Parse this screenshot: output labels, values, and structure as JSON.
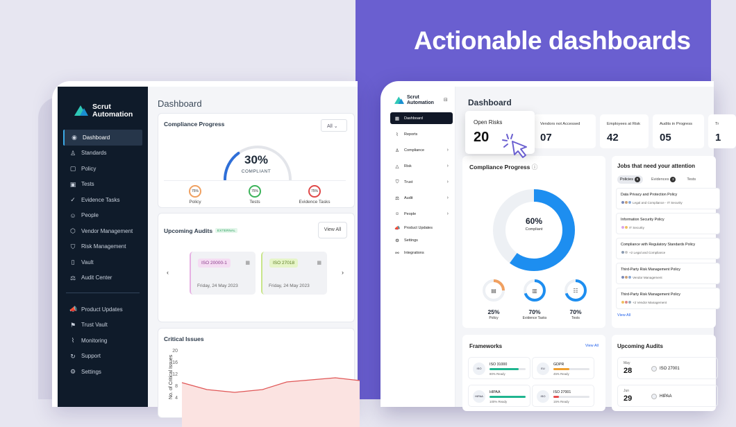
{
  "headline": "Actionable dashboards",
  "left": {
    "brand": {
      "line1": "Scrut",
      "line2": "Automation"
    },
    "nav": [
      {
        "label": "Dashboard",
        "icon": "◉",
        "active": true
      },
      {
        "label": "Standards",
        "icon": "♙"
      },
      {
        "label": "Policy",
        "icon": "▢"
      },
      {
        "label": "Tests",
        "icon": "▣"
      },
      {
        "label": "Evidence Tasks",
        "icon": "✓"
      },
      {
        "label": "People",
        "icon": "☺"
      },
      {
        "label": "Vendor Management",
        "icon": "⬡"
      },
      {
        "label": "Risk Management",
        "icon": "⛉"
      },
      {
        "label": "Vault",
        "icon": "▯"
      },
      {
        "label": "Audit Center",
        "icon": "⚖"
      }
    ],
    "nav2": [
      {
        "label": "Product Updates",
        "icon": "📣"
      },
      {
        "label": "Trust Vault",
        "icon": "⚑"
      },
      {
        "label": "Monitoring",
        "icon": "⌇"
      },
      {
        "label": "Support",
        "icon": "↻"
      },
      {
        "label": "Settings",
        "icon": "⚙"
      }
    ],
    "title": "Dashboard",
    "compliance": {
      "title": "Compliance Progress",
      "filter": "All",
      "percent": "30%",
      "percent_value": 30,
      "label": "COMPLIANT",
      "items": [
        {
          "ring": "75%",
          "label": "Policy"
        },
        {
          "ring": "75%",
          "label": "Tests"
        },
        {
          "ring": "75%",
          "label": "Evidence Tasks"
        }
      ]
    },
    "audits": {
      "title": "Upcoming Audits",
      "badge": "EXTERNAL",
      "view_all": "View All",
      "cards": [
        {
          "tag": "ISO 20000-1",
          "date": "Friday, 24 May 2023",
          "color": "#f5ddf3",
          "text_color": "#8a3a8a"
        },
        {
          "tag": "ISO 27018",
          "date": "Friday, 24 May 2023",
          "color": "#e6f5c8",
          "text_color": "#5a7a20"
        }
      ]
    },
    "critical": {
      "title": "Critical Issues",
      "ylabel": "No. of Critical Issues",
      "ticks": [
        "20",
        "16",
        "12",
        "8",
        "4"
      ]
    }
  },
  "right": {
    "brand": {
      "line1": "Scrut",
      "line2": "Automation"
    },
    "nav": [
      {
        "label": "Dashboard",
        "icon": "▦",
        "active": true,
        "chev": ""
      },
      {
        "label": "Reports",
        "icon": "⌇",
        "chev": ""
      },
      {
        "label": "Compliance",
        "icon": "♙",
        "chev": "›"
      },
      {
        "label": "Risk",
        "icon": "△",
        "chev": "›"
      },
      {
        "label": "Trust",
        "icon": "⛉",
        "chev": "›"
      },
      {
        "label": "Audit",
        "icon": "⚖",
        "chev": "›"
      },
      {
        "label": "People",
        "icon": "☺",
        "chev": "›"
      },
      {
        "label": "Product Updates",
        "icon": "📣",
        "chev": ""
      },
      {
        "label": "Settings",
        "icon": "⚙",
        "chev": ""
      },
      {
        "label": "Integrations",
        "icon": "⚯",
        "chev": ""
      }
    ],
    "title": "Dashboard",
    "open_risks": {
      "label": "Open Risks",
      "value": "20"
    },
    "stats": [
      {
        "label": "Vendors not Accessed",
        "value": "07"
      },
      {
        "label": "Employees at Risk",
        "value": "42"
      },
      {
        "label": "Audits in Progress",
        "value": "05"
      },
      {
        "label": "Tr",
        "value": "1"
      }
    ],
    "compliance": {
      "title": "Compliance Progress",
      "percent": "60%",
      "percent_value": 60,
      "label": "Compliant",
      "rings": [
        {
          "value": "25%",
          "label": "Policy",
          "fraction": 0.25,
          "color": "#f0a060",
          "icon": "▤"
        },
        {
          "value": "70%",
          "label": "Evidence Tasks",
          "fraction": 0.7,
          "color": "#1d8ef0",
          "icon": "▥"
        },
        {
          "value": "70%",
          "label": "Tests",
          "fraction": 0.7,
          "color": "#1d8ef0",
          "icon": "☷"
        }
      ]
    },
    "jobs": {
      "title": "Jobs that need your attention",
      "tabs": [
        {
          "label": "Policies",
          "count": "6"
        },
        {
          "label": "Evidences",
          "count": "3"
        },
        {
          "label": "Tests",
          "count": ""
        }
      ],
      "items": [
        {
          "title": "Data Privacy and Protection Policy",
          "sub": "Legal and Compliance - IT Security"
        },
        {
          "title": "Information Security Policy",
          "sub": "IT Security"
        },
        {
          "title": "Compliance with Regulatory Standards Policy",
          "sub": "+2  Legal and Compliance"
        },
        {
          "title": "Third-Party Risk Management Policy",
          "sub": "Vendor Management"
        },
        {
          "title": "Third-Party Risk Management Policy",
          "sub": "+2  Vendor Management"
        }
      ],
      "view_all": "View All"
    },
    "frameworks": {
      "title": "Frameworks",
      "view_all": "View All",
      "items": [
        {
          "name": "ISO 31000",
          "ready": "80% Ready",
          "fraction": 0.8,
          "color": "#1fb58f",
          "icon": "ISO"
        },
        {
          "name": "GDPR",
          "ready": "45% Ready",
          "fraction": 0.45,
          "color": "#f0a030",
          "icon": "EU"
        },
        {
          "name": "HIPAA",
          "ready": "100% Ready",
          "fraction": 1.0,
          "color": "#1fb58f",
          "icon": "HIPAA"
        },
        {
          "name": "ISO 27001",
          "ready": "15% Ready",
          "fraction": 0.15,
          "color": "#e84c4c",
          "icon": "ISO"
        }
      ]
    },
    "upcoming": {
      "title": "Upcoming Audits",
      "items": [
        {
          "month": "May",
          "day": "28",
          "name": "ISO 27001"
        },
        {
          "month": "Jun",
          "day": "29",
          "name": "HIPAA"
        }
      ]
    }
  }
}
